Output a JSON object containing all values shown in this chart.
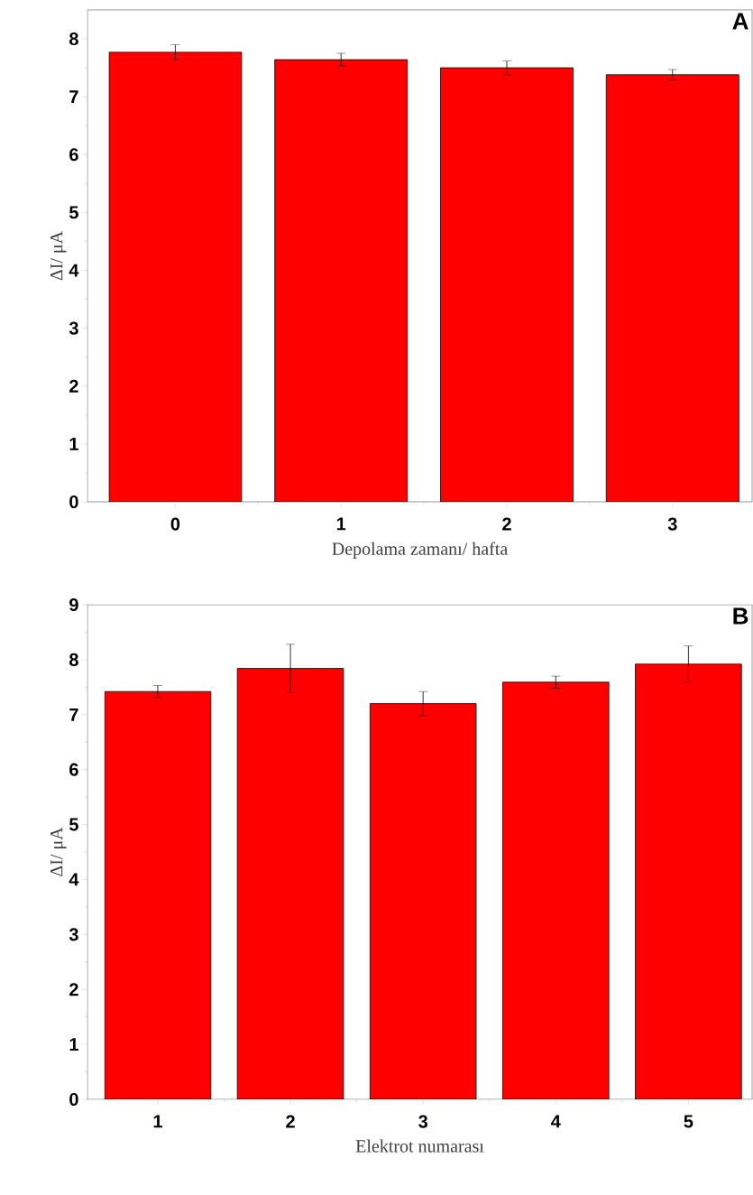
{
  "chart_data": [
    {
      "type": "bar",
      "xlabel": "Depolama zamanı/ hafta",
      "ylabel": "ΔI/ μA",
      "categories": [
        "0",
        "1",
        "2",
        "3"
      ],
      "values": [
        7.77,
        7.64,
        7.5,
        7.38
      ],
      "errors": [
        0.13,
        0.11,
        0.12,
        0.09
      ],
      "color": "#ff0000",
      "ylim": [
        0,
        8.5
      ],
      "yticks": [
        0,
        1,
        2,
        3,
        4,
        5,
        6,
        7,
        8
      ],
      "annotations": [
        "A"
      ]
    },
    {
      "type": "bar",
      "xlabel": "Elektrot numarası",
      "ylabel": "ΔI/ μA",
      "categories": [
        "1",
        "2",
        "3",
        "4",
        "5"
      ],
      "values": [
        7.42,
        7.84,
        7.2,
        7.59,
        7.92
      ],
      "errors": [
        0.11,
        0.44,
        0.22,
        0.11,
        0.33
      ],
      "color": "#ff0000",
      "ylim": [
        0,
        9
      ],
      "yticks": [
        0,
        1,
        2,
        3,
        4,
        5,
        6,
        7,
        8,
        9
      ],
      "annotations": [
        "B"
      ]
    }
  ]
}
